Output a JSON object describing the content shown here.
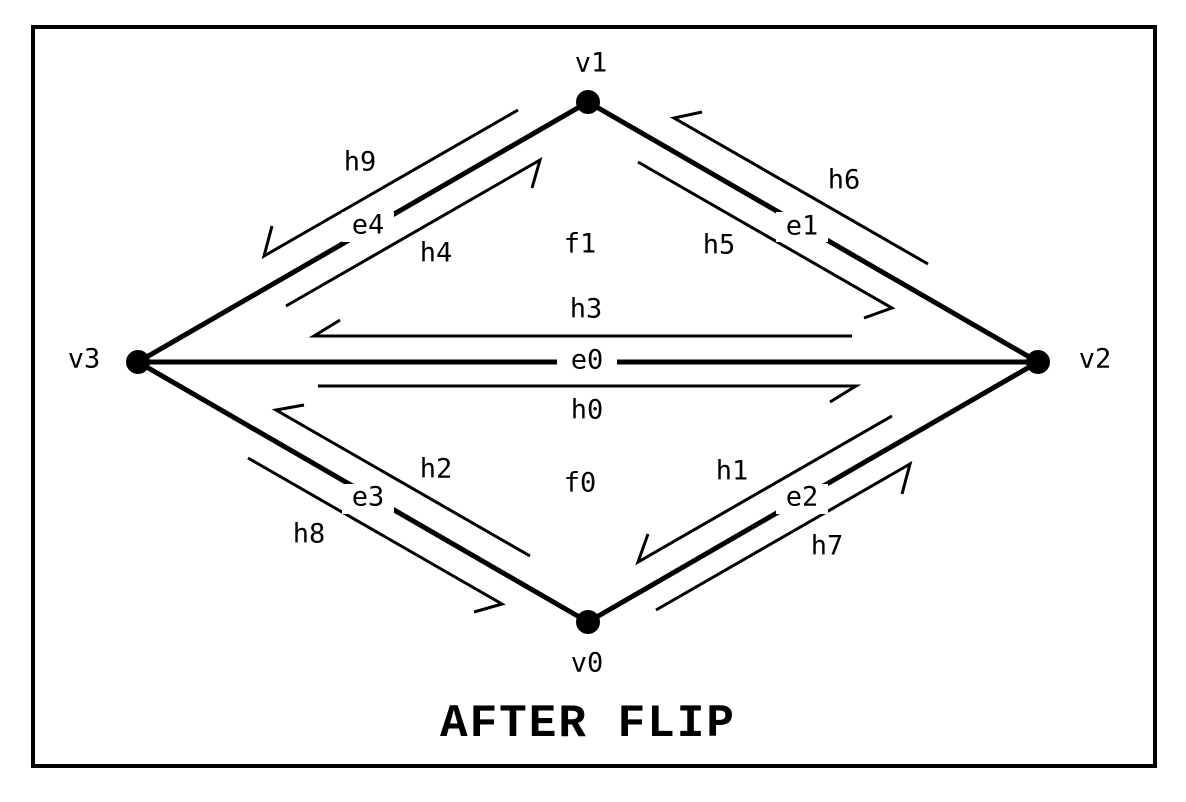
{
  "title": "AFTER FLIP",
  "vertices": {
    "v0": "v0",
    "v1": "v1",
    "v2": "v2",
    "v3": "v3"
  },
  "edges": {
    "e0": "e0",
    "e1": "e1",
    "e2": "e2",
    "e3": "e3",
    "e4": "e4"
  },
  "faces": {
    "f0": "f0",
    "f1": "f1"
  },
  "halfedges": {
    "h0": "h0",
    "h1": "h1",
    "h2": "h2",
    "h3": "h3",
    "h4": "h4",
    "h5": "h5",
    "h6": "h6",
    "h7": "h7",
    "h8": "h8",
    "h9": "h9"
  },
  "colors": {
    "ink": "#000000",
    "background": "#ffffff"
  }
}
